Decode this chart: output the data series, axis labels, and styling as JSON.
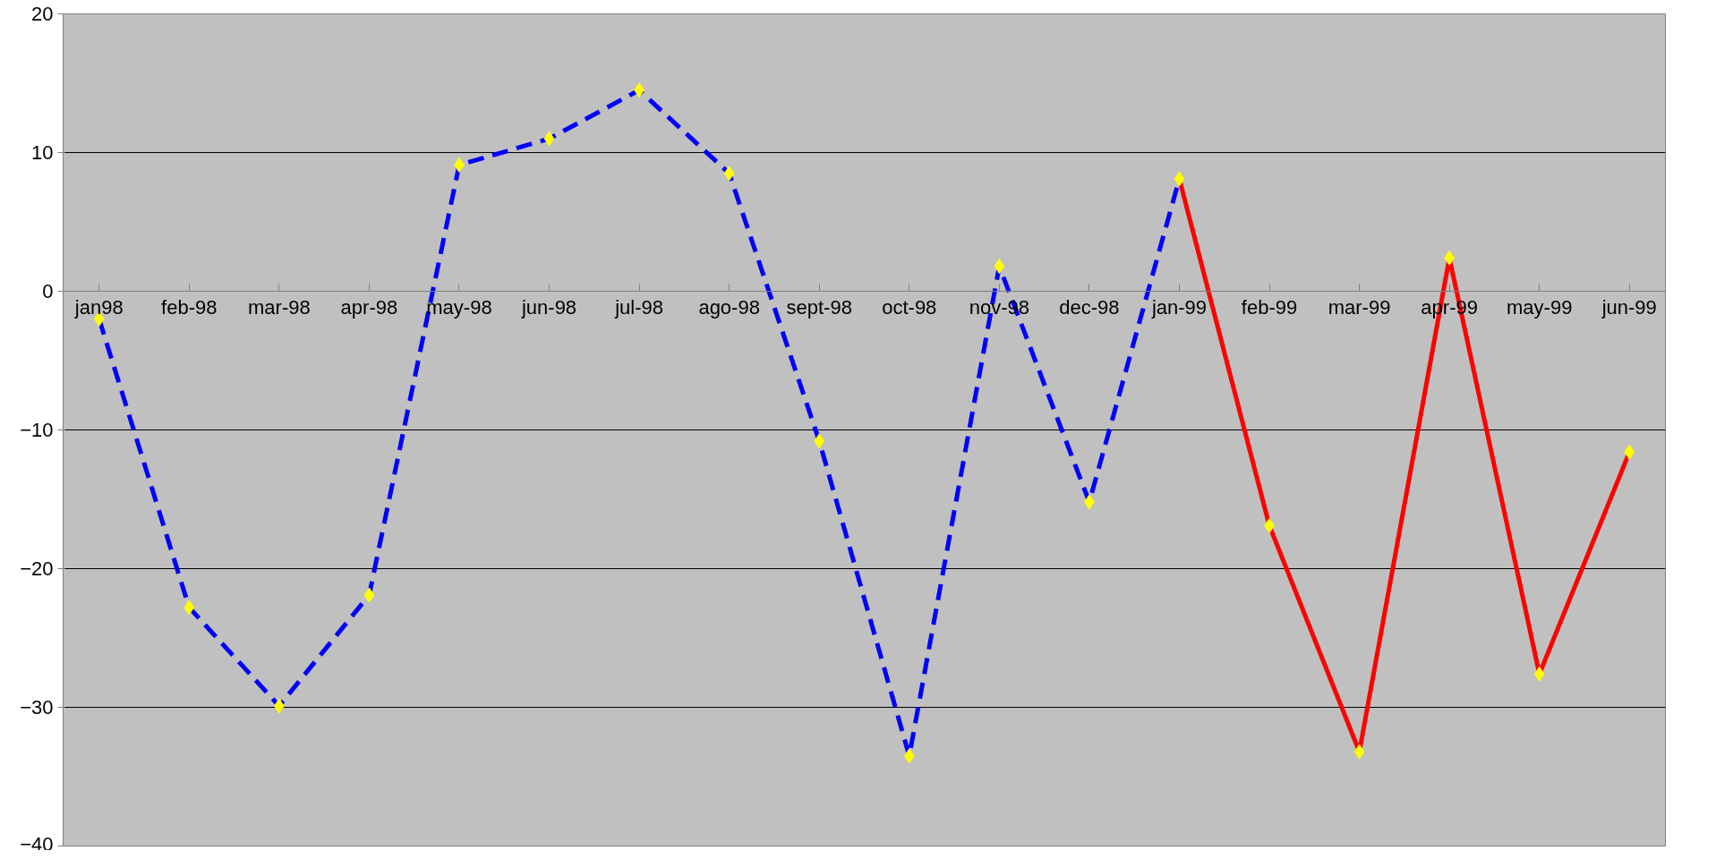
{
  "chart_data": {
    "type": "line",
    "categories": [
      "jan98",
      "feb-98",
      "mar-98",
      "apr-98",
      "may-98",
      "jun-98",
      "jul-98",
      "ago-98",
      "sept-98",
      "oct-98",
      "nov-98",
      "dec-98",
      "jan-99",
      "feb-99",
      "mar-99",
      "apr-99",
      "may-99",
      "jun-99"
    ],
    "series": [
      {
        "color": "#0000ff",
        "line_style": "dashed",
        "values": [
          -2.0,
          -22.8,
          -29.9,
          -21.9,
          9.1,
          11.0,
          14.5,
          8.5,
          -10.8,
          -33.5,
          1.8,
          -15.2,
          8.1,
          null,
          null,
          null,
          null,
          null
        ]
      },
      {
        "color": "#ff0000",
        "line_style": "solid",
        "values": [
          null,
          null,
          null,
          null,
          null,
          null,
          null,
          null,
          null,
          null,
          null,
          null,
          8.1,
          -16.9,
          -33.2,
          2.4,
          -27.6,
          -11.6
        ]
      },
      {
        "type": "scatter",
        "color": "#ffff00",
        "marker": "diamond",
        "values": [
          -2.0,
          -22.8,
          -29.9,
          -21.9,
          9.1,
          11.0,
          14.5,
          8.5,
          -10.8,
          -33.5,
          1.8,
          -15.2,
          8.1,
          -16.9,
          -33.2,
          2.4,
          -27.6,
          -11.6
        ]
      }
    ],
    "ylim": [
      -40,
      20
    ],
    "yticks": [
      -40,
      -30,
      -20,
      -10,
      0,
      10,
      20
    ],
    "grid": "y"
  }
}
